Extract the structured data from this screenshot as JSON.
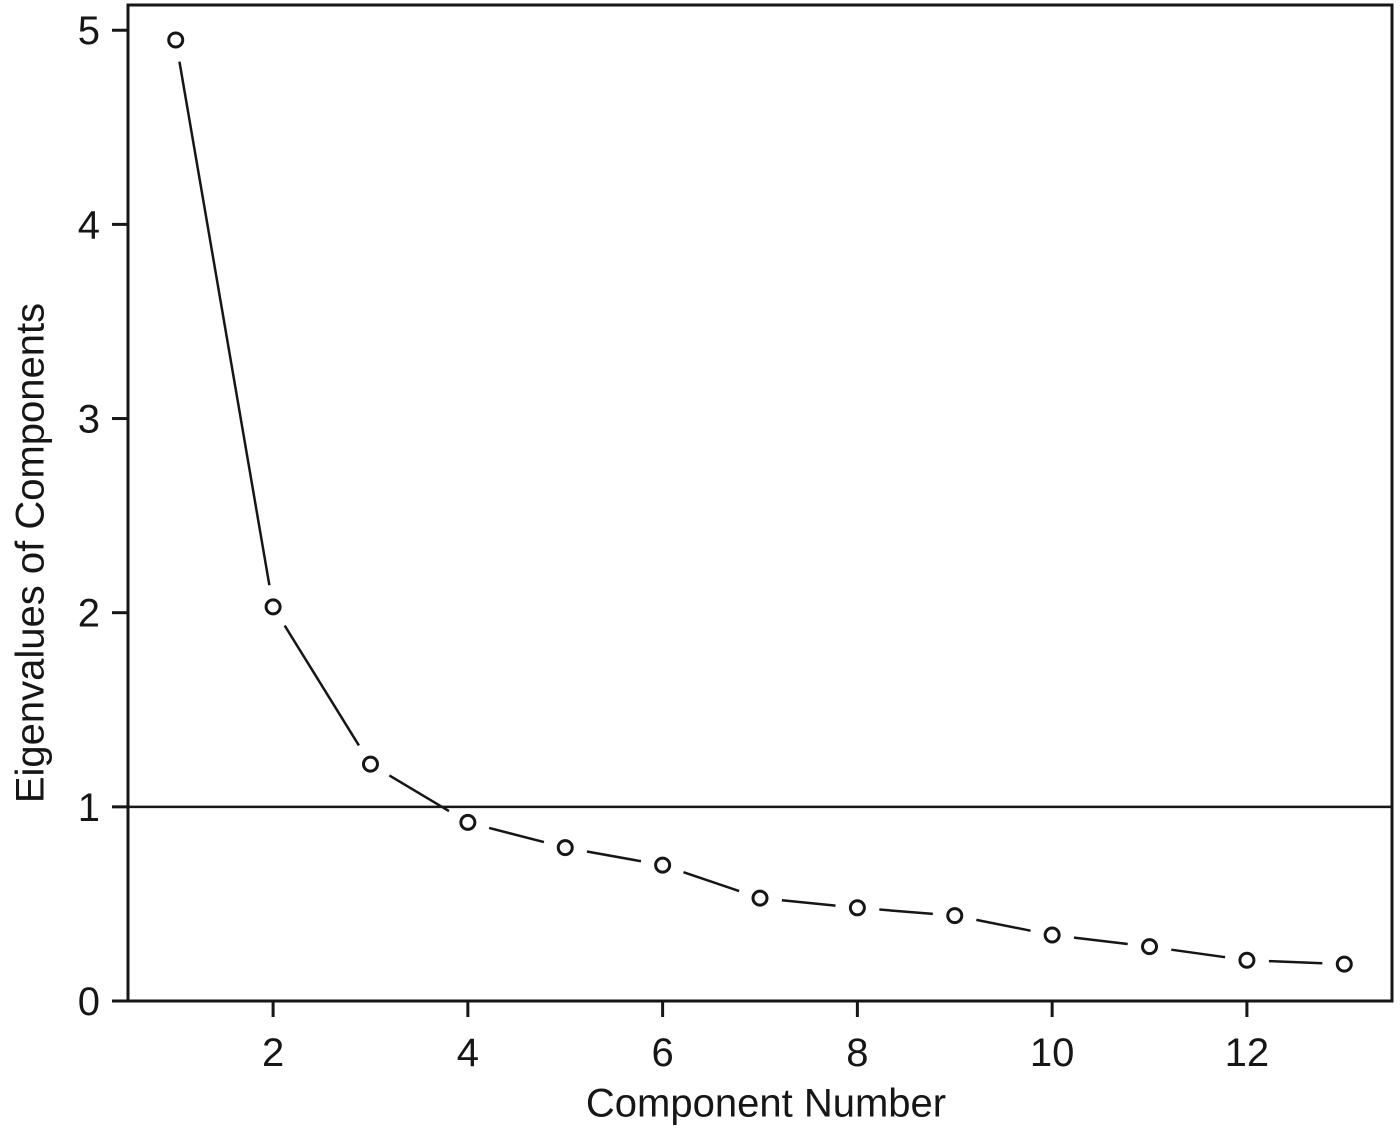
{
  "figure": {
    "background": "#ffffff",
    "ink": "#161616"
  },
  "chart_data": {
    "type": "line",
    "title": "",
    "xlabel": "Component Number",
    "ylabel": "Eigenvalues of Components",
    "x": [
      1,
      2,
      3,
      4,
      5,
      6,
      7,
      8,
      9,
      10,
      11,
      12,
      13
    ],
    "series": [
      {
        "name": "eigenvalues",
        "values": [
          4.95,
          2.03,
          1.22,
          0.92,
          0.79,
          0.7,
          0.53,
          0.48,
          0.44,
          0.34,
          0.28,
          0.21,
          0.19
        ]
      }
    ],
    "x_ticks": [
      2,
      4,
      6,
      8,
      10,
      12
    ],
    "y_ticks": [
      0,
      1,
      2,
      3,
      4,
      5
    ],
    "xlim": [
      0.51,
      13.49
    ],
    "ylim": [
      0,
      5.13
    ],
    "reference_line_y": 1,
    "marker": "open-circle",
    "line_type": "points-and-segments",
    "grid": false,
    "legend": "none"
  }
}
